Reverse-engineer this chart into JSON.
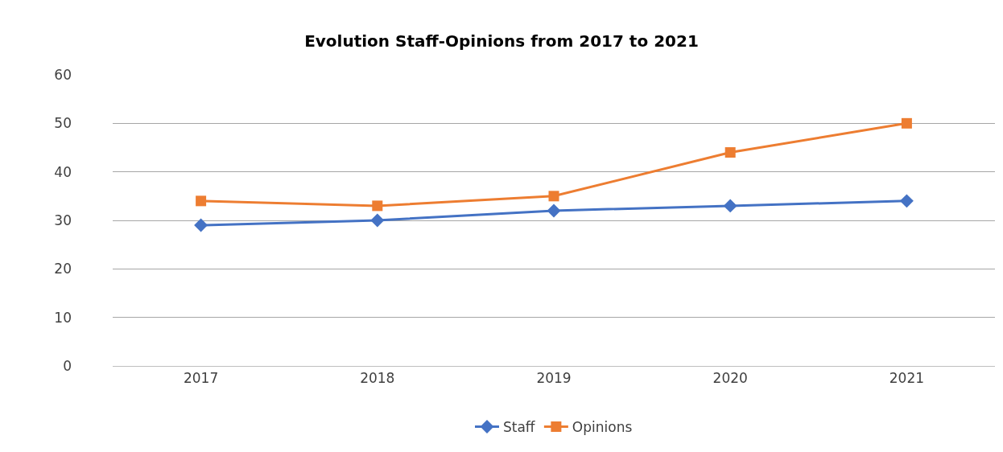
{
  "chart_data": {
    "type": "line",
    "title": "Evolution Staff-Opinions from 2017 to 2021",
    "categories": [
      "2017",
      "2018",
      "2019",
      "2020",
      "2021"
    ],
    "series": [
      {
        "name": "Staff",
        "color": "#4472c4",
        "marker": "diamond",
        "values": [
          29,
          30,
          32,
          33,
          34
        ]
      },
      {
        "name": "Opinions",
        "color": "#ed7d31",
        "marker": "square",
        "values": [
          34,
          33,
          35,
          44,
          50
        ]
      }
    ],
    "ylim": [
      0,
      60
    ],
    "yticks": [
      0,
      10,
      20,
      30,
      40,
      50,
      60
    ],
    "grid": "y",
    "legend": "bottom",
    "line_style": "solid"
  }
}
